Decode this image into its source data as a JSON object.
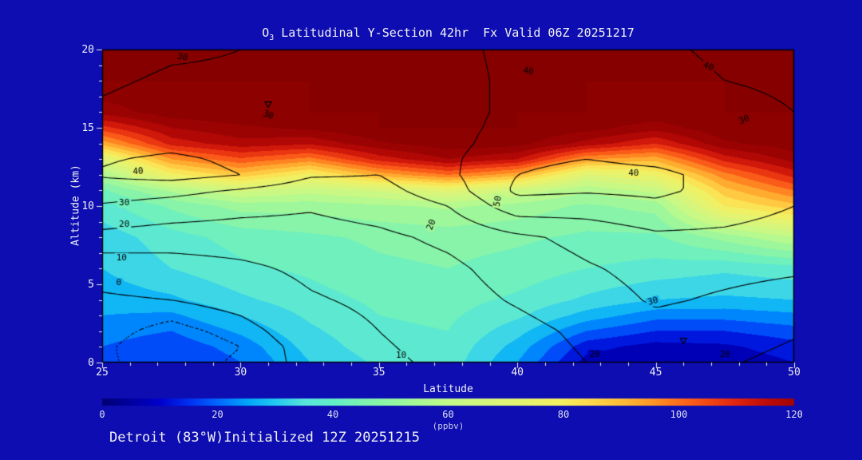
{
  "app": {
    "background": "#0d0db2"
  },
  "header": {
    "title_prefix": "O",
    "title_sub": "3",
    "title_rest": " Latitudinal Y-Section 42hr  Fx Valid 06Z 20251217"
  },
  "footer": {
    "text": "Detroit (83°W)Initialized 12Z 20251215"
  },
  "chart_data": {
    "type": "heatmap",
    "title": "O3 Latitudinal Y-Section 42hr  Fx Valid 06Z 20251217",
    "xlabel": "Latitude",
    "ylabel": "Altitude (km)",
    "colorbar_label": "(ppbv)",
    "fill_units": "ppbv",
    "xlim": [
      25,
      50
    ],
    "ylim": [
      0,
      20
    ],
    "x_ticks": [
      25,
      30,
      35,
      40,
      45,
      50
    ],
    "y_ticks": [
      0,
      5,
      10,
      15,
      20
    ],
    "x_minor_step": 1,
    "y_minor_step": 1,
    "grid_on": false,
    "lats": [
      25,
      27.5,
      30,
      32.5,
      35,
      37.5,
      40,
      42.5,
      45,
      47.5,
      50
    ],
    "alts": [
      0,
      1,
      2,
      3,
      4,
      6,
      8,
      10,
      11,
      12,
      13,
      14,
      15,
      16,
      18,
      20
    ],
    "fill_grid": [
      [
        18,
        15,
        20,
        30,
        36,
        38,
        25,
        8,
        5,
        6,
        10
      ],
      [
        20,
        17,
        22,
        32,
        38,
        39,
        28,
        12,
        8,
        9,
        13
      ],
      [
        22,
        20,
        26,
        34,
        39,
        40,
        32,
        20,
        15,
        15,
        18
      ],
      [
        25,
        24,
        30,
        36,
        40,
        41,
        36,
        28,
        22,
        22,
        24
      ],
      [
        27,
        29,
        34,
        38,
        41,
        42,
        39,
        34,
        30,
        29,
        30
      ],
      [
        30,
        35,
        39,
        41,
        44,
        45,
        43,
        40,
        38,
        36,
        38
      ],
      [
        32,
        38,
        42,
        44,
        46,
        47,
        46,
        44,
        44,
        52,
        60
      ],
      [
        38,
        46,
        52,
        52,
        54,
        56,
        53,
        49,
        52,
        80,
        88
      ],
      [
        44,
        56,
        66,
        62,
        66,
        72,
        64,
        56,
        62,
        88,
        100
      ],
      [
        55,
        78,
        88,
        78,
        92,
        100,
        92,
        70,
        76,
        98,
        112
      ],
      [
        70,
        95,
        104,
        98,
        112,
        120,
        115,
        95,
        92,
        112,
        122
      ],
      [
        92,
        112,
        118,
        116,
        124,
        128,
        127,
        118,
        110,
        124,
        128
      ],
      [
        108,
        120,
        124,
        126,
        130,
        130,
        130,
        127,
        122,
        129,
        130
      ],
      [
        122,
        128,
        129,
        130,
        130,
        130,
        130,
        130,
        129,
        130,
        130
      ],
      [
        130,
        130,
        130,
        130,
        130,
        130,
        130,
        130,
        130,
        130,
        130
      ],
      [
        130,
        130,
        130,
        130,
        130,
        130,
        130,
        130,
        130,
        130,
        130
      ]
    ],
    "contour_levels_solid": [
      0,
      10,
      20,
      30,
      40,
      50
    ],
    "contour_levels_dashed": [
      -5
    ],
    "contour_grid": [
      [
        -4,
        -8,
        -4,
        2,
        8,
        12,
        15,
        20,
        24,
        21,
        17
      ],
      [
        -4,
        -9,
        -5,
        3,
        9,
        13,
        16,
        21,
        26,
        23,
        19
      ],
      [
        -3,
        -7,
        -3,
        5,
        10,
        14,
        17,
        22,
        27,
        25,
        21
      ],
      [
        -2,
        -4,
        0,
        7,
        11,
        15,
        19,
        24,
        29,
        27,
        24
      ],
      [
        -1,
        0,
        3,
        9,
        12,
        16,
        21,
        26,
        31,
        29,
        27
      ],
      [
        3,
        5,
        8,
        12,
        15,
        18,
        24,
        29,
        33,
        32,
        31
      ],
      [
        17,
        15,
        15,
        16,
        18,
        22,
        28,
        33,
        38,
        38,
        36
      ],
      [
        29,
        26,
        23,
        21,
        24,
        30,
        46,
        45,
        48,
        44,
        40
      ],
      [
        35,
        33,
        29,
        25,
        27,
        35,
        52,
        51,
        52,
        47,
        42
      ],
      [
        41,
        44,
        40,
        31,
        30,
        38,
        50,
        53,
        52,
        47,
        43
      ],
      [
        39,
        42,
        38,
        32,
        32,
        38,
        48,
        50,
        48,
        45,
        42
      ],
      [
        35,
        37,
        34,
        31,
        33,
        37,
        45,
        47,
        45,
        43,
        41
      ],
      [
        33,
        35,
        33,
        31,
        33,
        37,
        43,
        45,
        44,
        42,
        40
      ],
      [
        31,
        33,
        32,
        31,
        34,
        37,
        42,
        44,
        43,
        42,
        40
      ],
      [
        29,
        31,
        31,
        31,
        34,
        37,
        42,
        43,
        42,
        40,
        39
      ],
      [
        27,
        29,
        30,
        32,
        35,
        38,
        42,
        43,
        41,
        39,
        38
      ]
    ],
    "contour_labels": [
      {
        "text": "30",
        "lat": 27.9,
        "alt": 19.5,
        "rot": 12
      },
      {
        "text": "30",
        "lat": 31.0,
        "alt": 15.8,
        "rot": 20
      },
      {
        "text": "40",
        "lat": 26.3,
        "alt": 12.2,
        "rot": -5
      },
      {
        "text": "30",
        "lat": 25.8,
        "alt": 10.2,
        "rot": 0
      },
      {
        "text": "20",
        "lat": 25.8,
        "alt": 8.8,
        "rot": 0
      },
      {
        "text": "10",
        "lat": 25.7,
        "alt": 6.7,
        "rot": 0
      },
      {
        "text": "0",
        "lat": 25.6,
        "alt": 5.1,
        "rot": 0
      },
      {
        "text": "20",
        "lat": 36.9,
        "alt": 8.8,
        "rot": -70
      },
      {
        "text": "50",
        "lat": 39.3,
        "alt": 10.3,
        "rot": -80
      },
      {
        "text": "40",
        "lat": 40.4,
        "alt": 18.6,
        "rot": 10
      },
      {
        "text": "40",
        "lat": 46.9,
        "alt": 18.9,
        "rot": 20
      },
      {
        "text": "40",
        "lat": 44.2,
        "alt": 12.1,
        "rot": 0
      },
      {
        "text": "30",
        "lat": 48.2,
        "alt": 15.5,
        "rot": -25
      },
      {
        "text": "30",
        "lat": 44.9,
        "alt": 3.9,
        "rot": -15
      },
      {
        "text": "20",
        "lat": 42.8,
        "alt": 0.5,
        "rot": 0
      },
      {
        "text": "10",
        "lat": 35.8,
        "alt": 0.45,
        "rot": 0
      },
      {
        "text": "20",
        "lat": 47.5,
        "alt": 0.5,
        "rot": 0
      }
    ],
    "markers": [
      {
        "lat": 31.0,
        "alt": 16.5
      },
      {
        "lat": 46.0,
        "alt": 1.4
      }
    ],
    "colorbar": {
      "min": 0,
      "max": 120,
      "ticks": [
        0,
        20,
        40,
        60,
        80,
        100,
        120
      ],
      "stops": [
        [
          0,
          "#000074"
        ],
        [
          10,
          "#0000cc"
        ],
        [
          15,
          "#0030f0"
        ],
        [
          20,
          "#0068ff"
        ],
        [
          25,
          "#00a4f8"
        ],
        [
          30,
          "#22c8f0"
        ],
        [
          35,
          "#58e4dc"
        ],
        [
          40,
          "#62eec6"
        ],
        [
          45,
          "#7cf2b2"
        ],
        [
          50,
          "#92f6a2"
        ],
        [
          55,
          "#aaf894"
        ],
        [
          60,
          "#c2f988"
        ],
        [
          70,
          "#def476"
        ],
        [
          80,
          "#f6ee5e"
        ],
        [
          85,
          "#fed84a"
        ],
        [
          90,
          "#ffbc38"
        ],
        [
          95,
          "#ff9a28"
        ],
        [
          100,
          "#ff6e1c"
        ],
        [
          105,
          "#f44814"
        ],
        [
          110,
          "#e0240e"
        ],
        [
          115,
          "#c00c08"
        ],
        [
          120,
          "#a20404"
        ],
        [
          130,
          "#860000"
        ]
      ]
    }
  }
}
